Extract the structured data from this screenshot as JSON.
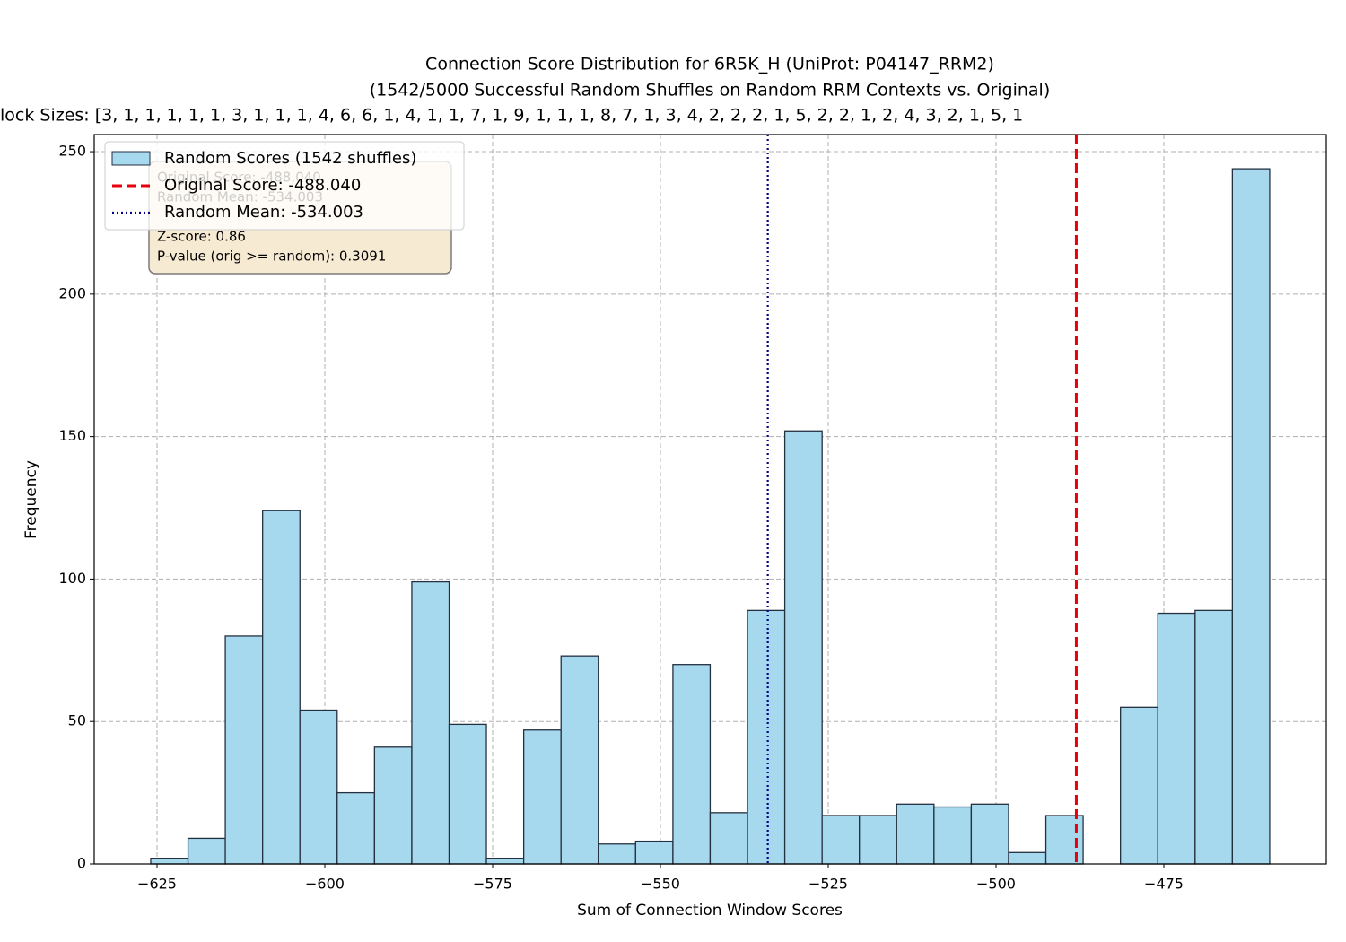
{
  "chart_data": {
    "type": "histogram",
    "title": "Connection Score Distribution for 6R5K_H (UniProt: P04147_RRM2)",
    "subtitle": "(1542/5000 Successful Random Shuffles on Random RRM Contexts vs. Original)",
    "subtitle2": "lock Sizes: [3, 1, 1, 1, 1, 1, 3, 1, 1, 1, 4, 6, 6, 1, 4, 1, 1, 7, 1, 9, 1, 1, 1, 8, 7, 1, 3, 4, 2, 2, 2, 1, 5, 2, 2, 1, 2, 4, 3, 2, 1, 5, 1",
    "xlabel": "Sum of Connection Window Scores",
    "ylabel": "Frequency",
    "bins": [
      -625.94,
      -620.38,
      -614.83,
      -609.27,
      -603.71,
      -598.16,
      -592.6,
      -587.04,
      -581.48,
      -575.93,
      -570.37,
      -564.81,
      -559.26,
      -553.7,
      -548.14,
      -542.59,
      -537.03,
      -531.47,
      -525.91,
      -520.36,
      -514.8,
      -509.24,
      -503.69,
      -498.13,
      -492.57,
      -487.02,
      -481.46,
      -475.9,
      -470.34,
      -464.79,
      -459.23
    ],
    "values": [
      2,
      9,
      80,
      124,
      54,
      25,
      41,
      99,
      49,
      2,
      47,
      73,
      7,
      8,
      70,
      18,
      89,
      152,
      17,
      17,
      21,
      20,
      21,
      4,
      17,
      0,
      55,
      88,
      89,
      244
    ],
    "series_name": "Random Scores (1542 shuffles)",
    "color": "#a6d9ee",
    "edge_color": "#243040",
    "lines": [
      {
        "name": "Original Score: -488.040",
        "value": -488.04,
        "color": "#e8000b",
        "style": "dashed"
      },
      {
        "name": "Random Mean: -534.003",
        "value": -534.003,
        "color": "#00008b",
        "style": "dotted"
      }
    ],
    "stats": [
      "Original Score: -488.040",
      "Random Mean: -534.003",
      "Z-score: 0.86",
      "P-value (orig >= random): 0.3091"
    ],
    "xlim": [
      -634.36,
      -450.8
    ],
    "ylim": [
      0,
      256
    ],
    "xticks": [
      {
        "value": -625,
        "label": "−625"
      },
      {
        "value": -600,
        "label": "−600"
      },
      {
        "value": -575,
        "label": "−575"
      },
      {
        "value": -550,
        "label": "−550"
      },
      {
        "value": -525,
        "label": "−525"
      },
      {
        "value": -500,
        "label": "−500"
      },
      {
        "value": -475,
        "label": "−475"
      }
    ],
    "yticks": [
      0,
      50,
      100,
      150,
      200,
      250
    ],
    "grid": true,
    "legend": "upper left"
  }
}
